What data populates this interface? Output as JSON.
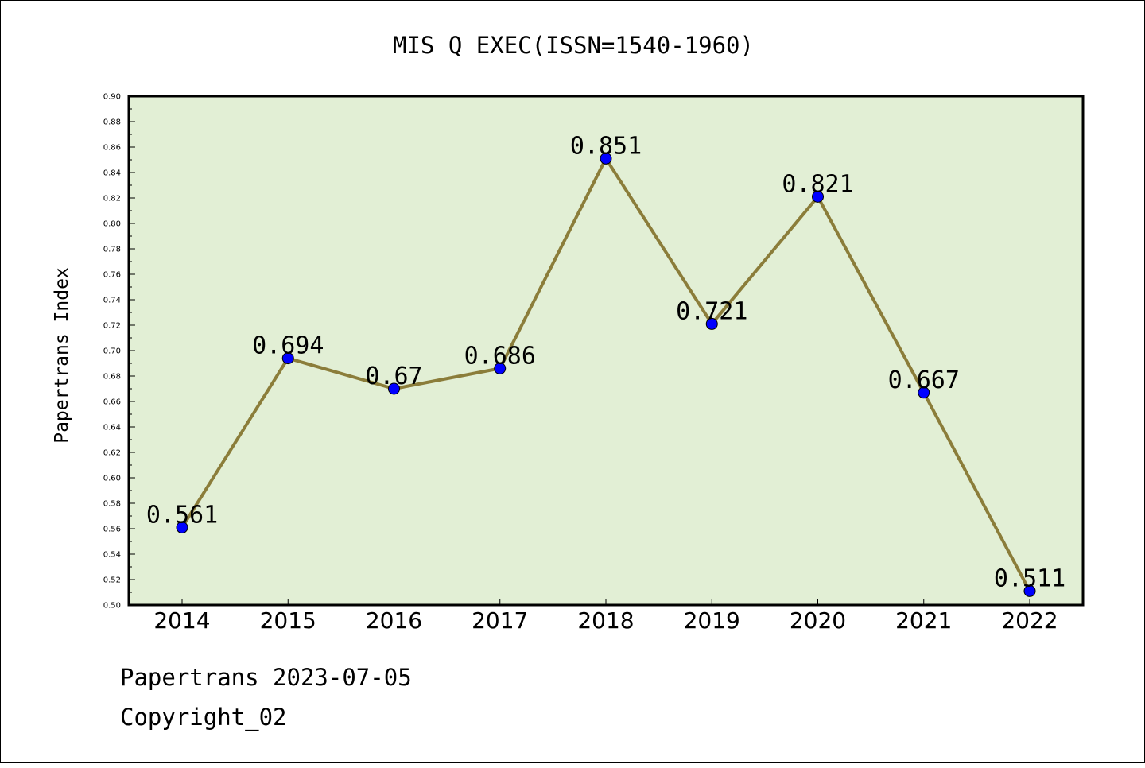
{
  "chart_data": {
    "type": "line",
    "title": "MIS Q EXEC(ISSN=1540-1960)",
    "xlabel": "",
    "ylabel": "Papertrans Index",
    "categories": [
      "2014",
      "2015",
      "2016",
      "2017",
      "2018",
      "2019",
      "2020",
      "2021",
      "2022"
    ],
    "series": [
      {
        "values": [
          0.561,
          0.694,
          0.67,
          0.686,
          0.851,
          0.721,
          0.821,
          0.667,
          0.511
        ],
        "labels": [
          "0.561",
          "0.694",
          "0.67",
          "0.686",
          "0.851",
          "0.721",
          "0.821",
          "0.667",
          "0.511"
        ]
      }
    ],
    "ylim": [
      0.5,
      0.9
    ],
    "ytick_step": 0.02,
    "grid": false,
    "legend": "none",
    "colors": {
      "plot_background": "#e2efd5",
      "line": "#8b7d3a",
      "marker": "#0000ff"
    }
  },
  "footer": {
    "line1": "Papertrans 2023-07-05",
    "line2": "Copyright_02"
  }
}
